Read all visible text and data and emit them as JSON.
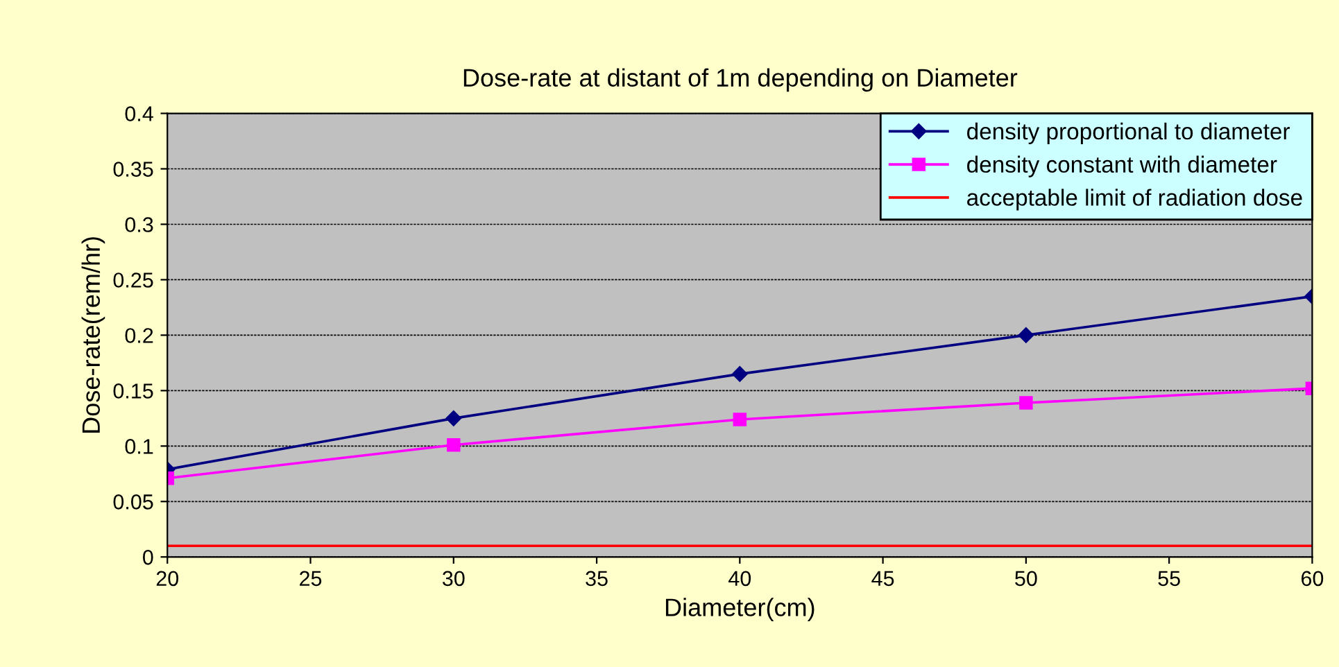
{
  "chart_data": {
    "type": "line",
    "title": "Dose-rate at distant of 1m depending on Diameter",
    "xlabel": "Diameter(cm)",
    "ylabel": "Dose-rate(rem/hr)",
    "x": [
      20,
      30,
      40,
      50,
      60
    ],
    "series": [
      {
        "name": "density proportional to diameter",
        "color": "#000080",
        "marker": "diamond",
        "values": [
          0.079,
          0.125,
          0.165,
          0.2,
          0.235
        ]
      },
      {
        "name": "density constant with diameter",
        "color": "#ff00ff",
        "marker": "square",
        "values": [
          0.071,
          0.101,
          0.124,
          0.139,
          0.152
        ]
      },
      {
        "name": "acceptable limit of radiation dose",
        "color": "#ff0000",
        "marker": "none",
        "values": [
          0.01,
          0.01,
          0.01,
          0.01,
          0.01
        ]
      }
    ],
    "xlim": [
      20,
      60
    ],
    "xticks": [
      20,
      25,
      30,
      35,
      40,
      45,
      50,
      55,
      60
    ],
    "ylim": [
      0,
      0.4
    ],
    "yticks": [
      0,
      0.05,
      0.1,
      0.15,
      0.2,
      0.25,
      0.3,
      0.35,
      0.4
    ],
    "grid": "y",
    "legend": "top right",
    "line_style": "solid"
  }
}
